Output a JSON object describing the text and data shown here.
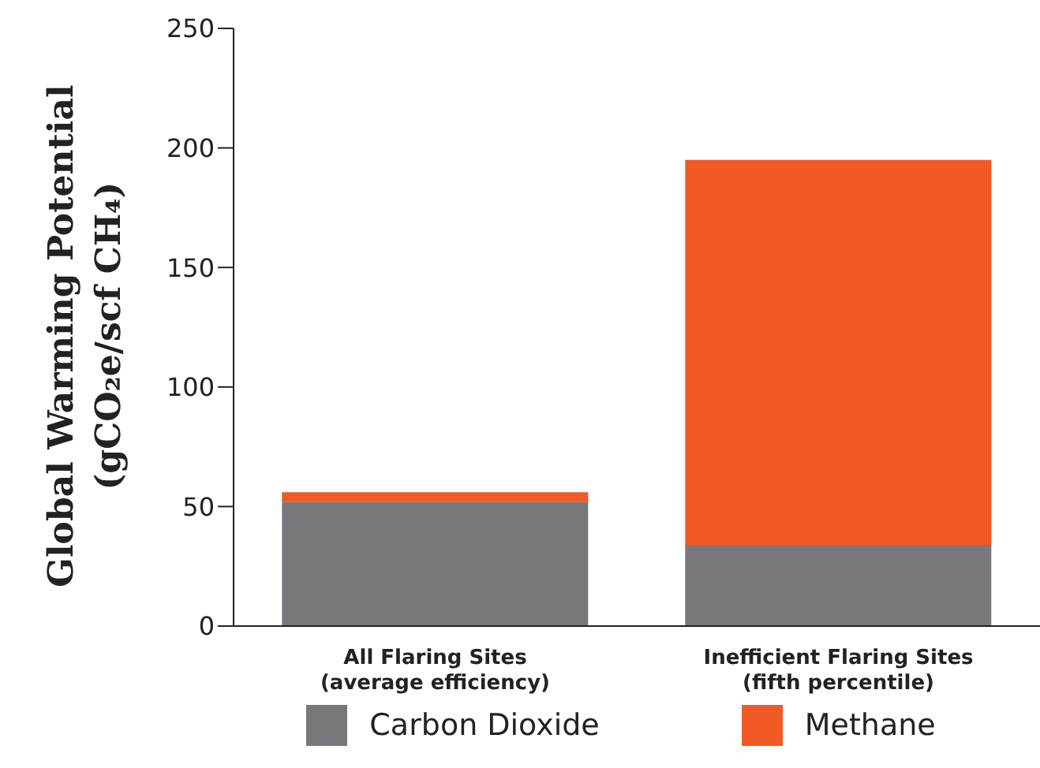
{
  "chart_data": {
    "type": "bar",
    "stacked": true,
    "ylabel": "Global Warming Potential\n(gCO₂e/scf CH₄)",
    "categories": [
      "All Flaring Sites\n(average efficiency)",
      "Inefficient Flaring Sites\n(fifth percentile)"
    ],
    "series": [
      {
        "name": "Carbon Dioxide",
        "color": "#77787b",
        "values": [
          52,
          34
        ]
      },
      {
        "name": "Methane",
        "color": "#f15a24",
        "values": [
          4,
          161
        ]
      }
    ],
    "ylim": [
      0,
      250
    ],
    "yticks": [
      0,
      50,
      100,
      150,
      200,
      250
    ],
    "grid": false,
    "legend": "bottom"
  }
}
